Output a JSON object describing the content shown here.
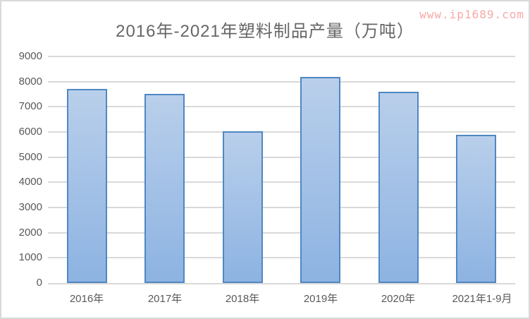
{
  "page": {
    "watermark": "www.ip1689.com"
  },
  "chart_data": {
    "type": "bar",
    "title": "2016年-2021年塑料制品产量（万吨）",
    "categories": [
      "2016年",
      "2017年",
      "2018年",
      "2019年",
      "2020年",
      "2021年1-9月"
    ],
    "values": [
      7717,
      7516,
      6042,
      8184,
      7603,
      5897
    ],
    "xlabel": "",
    "ylabel": "",
    "ylim": [
      0,
      9000
    ],
    "ytick_step": 1000,
    "grid": true,
    "legend": false,
    "colors": {
      "bar_fill_top": "#b9cfeb",
      "bar_fill_bottom": "#8db3e2",
      "bar_border": "#4f87c3",
      "gridline": "#d9d9d9",
      "axis_text": "#595959",
      "title_text": "#666666",
      "watermark": "#f9a8a8"
    }
  }
}
